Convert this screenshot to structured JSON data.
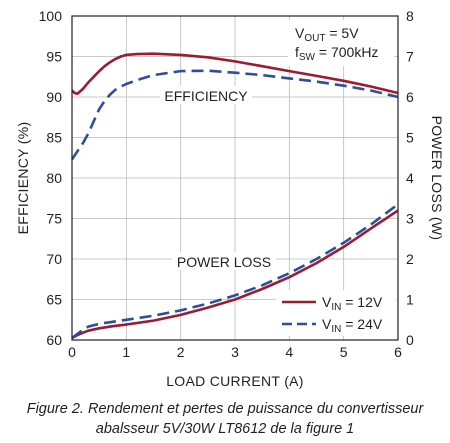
{
  "chart_data": {
    "type": "line",
    "title": "",
    "xlabel": "LOAD CURRENT (A)",
    "ylabel_left": "EFFICIENCY (%)",
    "ylabel_right": "POWER LOSS (W)",
    "xlim": [
      0,
      6
    ],
    "ylim_left": [
      60,
      100
    ],
    "ylim_right": [
      0,
      8
    ],
    "x_ticks": [
      "0",
      "1",
      "2",
      "3",
      "4",
      "5",
      "6"
    ],
    "y_ticks_left": [
      "60",
      "65",
      "70",
      "75",
      "80",
      "85",
      "90",
      "95",
      "100"
    ],
    "y_ticks_right": [
      "0",
      "1",
      "2",
      "3",
      "4",
      "5",
      "6",
      "7",
      "8"
    ],
    "grid": true,
    "legend_position": "bottom-right",
    "annotations": {
      "efficiency_label": "EFFICIENCY",
      "power_loss_label": "POWER LOSS",
      "vout": {
        "main": "V",
        "sub": "OUT",
        "rest": " = 5V"
      },
      "fsw": {
        "main": "f",
        "sub": "SW",
        "rest": " = 700kHz"
      }
    },
    "legend": [
      {
        "main": "V",
        "sub": "IN",
        "rest": " = 12V",
        "color": "#9b1b30",
        "dash": "solid"
      },
      {
        "main": "V",
        "sub": "IN",
        "rest": " = 24V",
        "color": "#2e4d9a",
        "dash": "dashed"
      }
    ],
    "series": [
      {
        "name": "VIN = 12V",
        "quantity": "efficiency",
        "axis": "left",
        "color": "#9b1b30",
        "dash": "solid",
        "points": [
          [
            0,
            90.8
          ],
          [
            0.05,
            90.5
          ],
          [
            0.1,
            90.4
          ],
          [
            0.2,
            91
          ],
          [
            0.3,
            91.8
          ],
          [
            0.4,
            92.5
          ],
          [
            0.5,
            93.2
          ],
          [
            0.6,
            93.8
          ],
          [
            0.7,
            94.3
          ],
          [
            0.8,
            94.7
          ],
          [
            0.9,
            95.0
          ],
          [
            1.0,
            95.2
          ],
          [
            1.2,
            95.3
          ],
          [
            1.5,
            95.35
          ],
          [
            2.0,
            95.2
          ],
          [
            2.5,
            94.9
          ],
          [
            3.0,
            94.4
          ],
          [
            3.5,
            93.8
          ],
          [
            4.0,
            93.2
          ],
          [
            4.5,
            92.6
          ],
          [
            5.0,
            92.0
          ],
          [
            5.5,
            91.3
          ],
          [
            6.0,
            90.5
          ]
        ]
      },
      {
        "name": "VIN = 24V",
        "quantity": "efficiency",
        "axis": "left",
        "color": "#2e4d9a",
        "dash": "dashed",
        "points": [
          [
            0,
            82.3
          ],
          [
            0.1,
            83.3
          ],
          [
            0.2,
            84.3
          ],
          [
            0.3,
            85.5
          ],
          [
            0.4,
            87.0
          ],
          [
            0.5,
            88.5
          ],
          [
            0.6,
            89.5
          ],
          [
            0.7,
            90.3
          ],
          [
            0.8,
            90.9
          ],
          [
            0.9,
            91.3
          ],
          [
            1.0,
            91.6
          ],
          [
            1.2,
            92.1
          ],
          [
            1.5,
            92.7
          ],
          [
            2.0,
            93.2
          ],
          [
            2.5,
            93.25
          ],
          [
            3.0,
            93.0
          ],
          [
            3.5,
            92.7
          ],
          [
            4.0,
            92.3
          ],
          [
            4.5,
            91.9
          ],
          [
            5.0,
            91.4
          ],
          [
            5.5,
            90.8
          ],
          [
            6.0,
            90.0
          ]
        ]
      },
      {
        "name": "VIN = 12V",
        "quantity": "power loss",
        "axis": "right",
        "color": "#9b1b30",
        "dash": "solid",
        "points": [
          [
            0,
            0.05
          ],
          [
            0.1,
            0.12
          ],
          [
            0.2,
            0.18
          ],
          [
            0.3,
            0.23
          ],
          [
            0.5,
            0.29
          ],
          [
            0.75,
            0.34
          ],
          [
            1.0,
            0.38
          ],
          [
            1.5,
            0.48
          ],
          [
            2.0,
            0.62
          ],
          [
            2.5,
            0.8
          ],
          [
            3.0,
            1.0
          ],
          [
            3.5,
            1.26
          ],
          [
            4.0,
            1.55
          ],
          [
            4.5,
            1.9
          ],
          [
            5.0,
            2.3
          ],
          [
            5.5,
            2.75
          ],
          [
            6.0,
            3.2
          ]
        ]
      },
      {
        "name": "VIN = 24V",
        "quantity": "power loss",
        "axis": "right",
        "color": "#2e4d9a",
        "dash": "dashed",
        "points": [
          [
            0,
            0.05
          ],
          [
            0.1,
            0.15
          ],
          [
            0.2,
            0.25
          ],
          [
            0.3,
            0.33
          ],
          [
            0.5,
            0.4
          ],
          [
            0.75,
            0.45
          ],
          [
            1.0,
            0.5
          ],
          [
            1.5,
            0.6
          ],
          [
            2.0,
            0.73
          ],
          [
            2.5,
            0.9
          ],
          [
            3.0,
            1.1
          ],
          [
            3.5,
            1.35
          ],
          [
            4.0,
            1.65
          ],
          [
            4.5,
            2.0
          ],
          [
            5.0,
            2.4
          ],
          [
            5.5,
            2.85
          ],
          [
            6.0,
            3.35
          ]
        ]
      }
    ]
  },
  "caption": {
    "line1": "Figure 2. Rendement et pertes de puissance du convertisseur",
    "line2": "abalsseur 5V/30W LT8612 de la figure 1"
  }
}
